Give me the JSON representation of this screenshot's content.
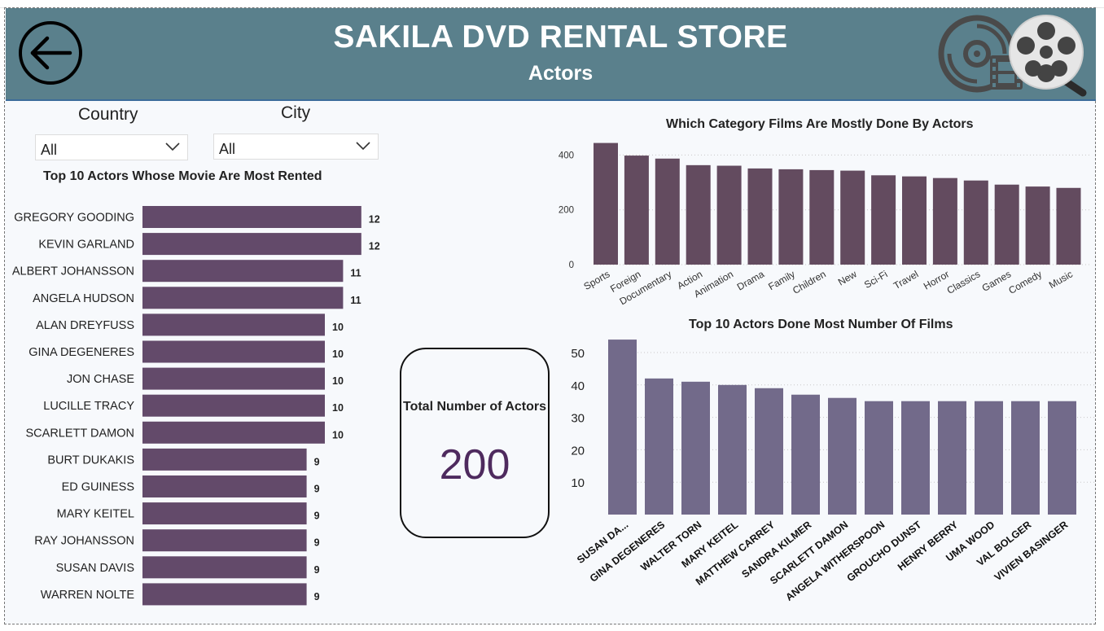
{
  "header": {
    "title": "SAKILA DVD RENTAL STORE",
    "subtitle": "Actors",
    "back_icon": "back-arrow-icon",
    "logo_icon": "film-reel-logo-icon"
  },
  "filters": {
    "country": {
      "label": "Country",
      "value": "All"
    },
    "city": {
      "label": "City",
      "value": "All"
    }
  },
  "kpi": {
    "label": "Total Number of Actors",
    "value": "200"
  },
  "colors": {
    "header_bg": "#5a808c",
    "bar_left": "#634a6a",
    "bar_category": "#634b5f",
    "bar_films": "#726a8a",
    "kpi_value": "#4e2a5e"
  },
  "chart_data": [
    {
      "id": "top-actors-rented",
      "type": "bar",
      "orientation": "horizontal",
      "title": "Top 10 Actors Whose Movie Are Most Rented",
      "categories": [
        "GREGORY GOODING",
        "KEVIN GARLAND",
        "ALBERT JOHANSSON",
        "ANGELA HUDSON",
        "ALAN DREYFUSS",
        "GINA DEGENERES",
        "JON CHASE",
        "LUCILLE TRACY",
        "SCARLETT DAMON",
        "BURT DUKAKIS",
        "ED GUINESS",
        "MARY KEITEL",
        "RAY JOHANSSON",
        "SUSAN DAVIS",
        "WARREN NOLTE"
      ],
      "values": [
        12,
        12,
        11,
        11,
        10,
        10,
        10,
        10,
        10,
        9,
        9,
        9,
        9,
        9,
        9
      ],
      "data_labels": true,
      "grid": false
    },
    {
      "id": "category-films",
      "type": "bar",
      "title": "Which Category Films Are Mostly Done By Actors",
      "categories": [
        "Sports",
        "Foreign",
        "Documentary",
        "Action",
        "Animation",
        "Drama",
        "Family",
        "Children",
        "New",
        "Sci-Fi",
        "Travel",
        "Horror",
        "Classics",
        "Games",
        "Comedy",
        "Music"
      ],
      "values": [
        444,
        398,
        387,
        363,
        361,
        351,
        348,
        345,
        343,
        326,
        322,
        316,
        307,
        292,
        285,
        280
      ],
      "yticks": [
        "0",
        "200",
        "400"
      ],
      "ylim": [
        0,
        460
      ],
      "grid": true
    },
    {
      "id": "top-actors-films",
      "type": "bar",
      "title": "Top 10 Actors Done Most Number Of Films",
      "categories": [
        "SUSAN DA...",
        "GINA DEGENERES",
        "WALTER TORN",
        "MARY KEITEL",
        "MATTHEW CARREY",
        "SANDRA KILMER",
        "SCARLETT DAMON",
        "ANGELA WITHERSPOON",
        "GROUCHO DUNST",
        "HENRY BERRY",
        "UMA WOOD",
        "VAL BOLGER",
        "VIVIEN BASINGER"
      ],
      "values": [
        54,
        42,
        41,
        40,
        39,
        37,
        36,
        35,
        35,
        35,
        35,
        35,
        35
      ],
      "yticks": [
        "10",
        "20",
        "30",
        "40",
        "50"
      ],
      "ylim": [
        0,
        56
      ],
      "grid": true
    }
  ]
}
